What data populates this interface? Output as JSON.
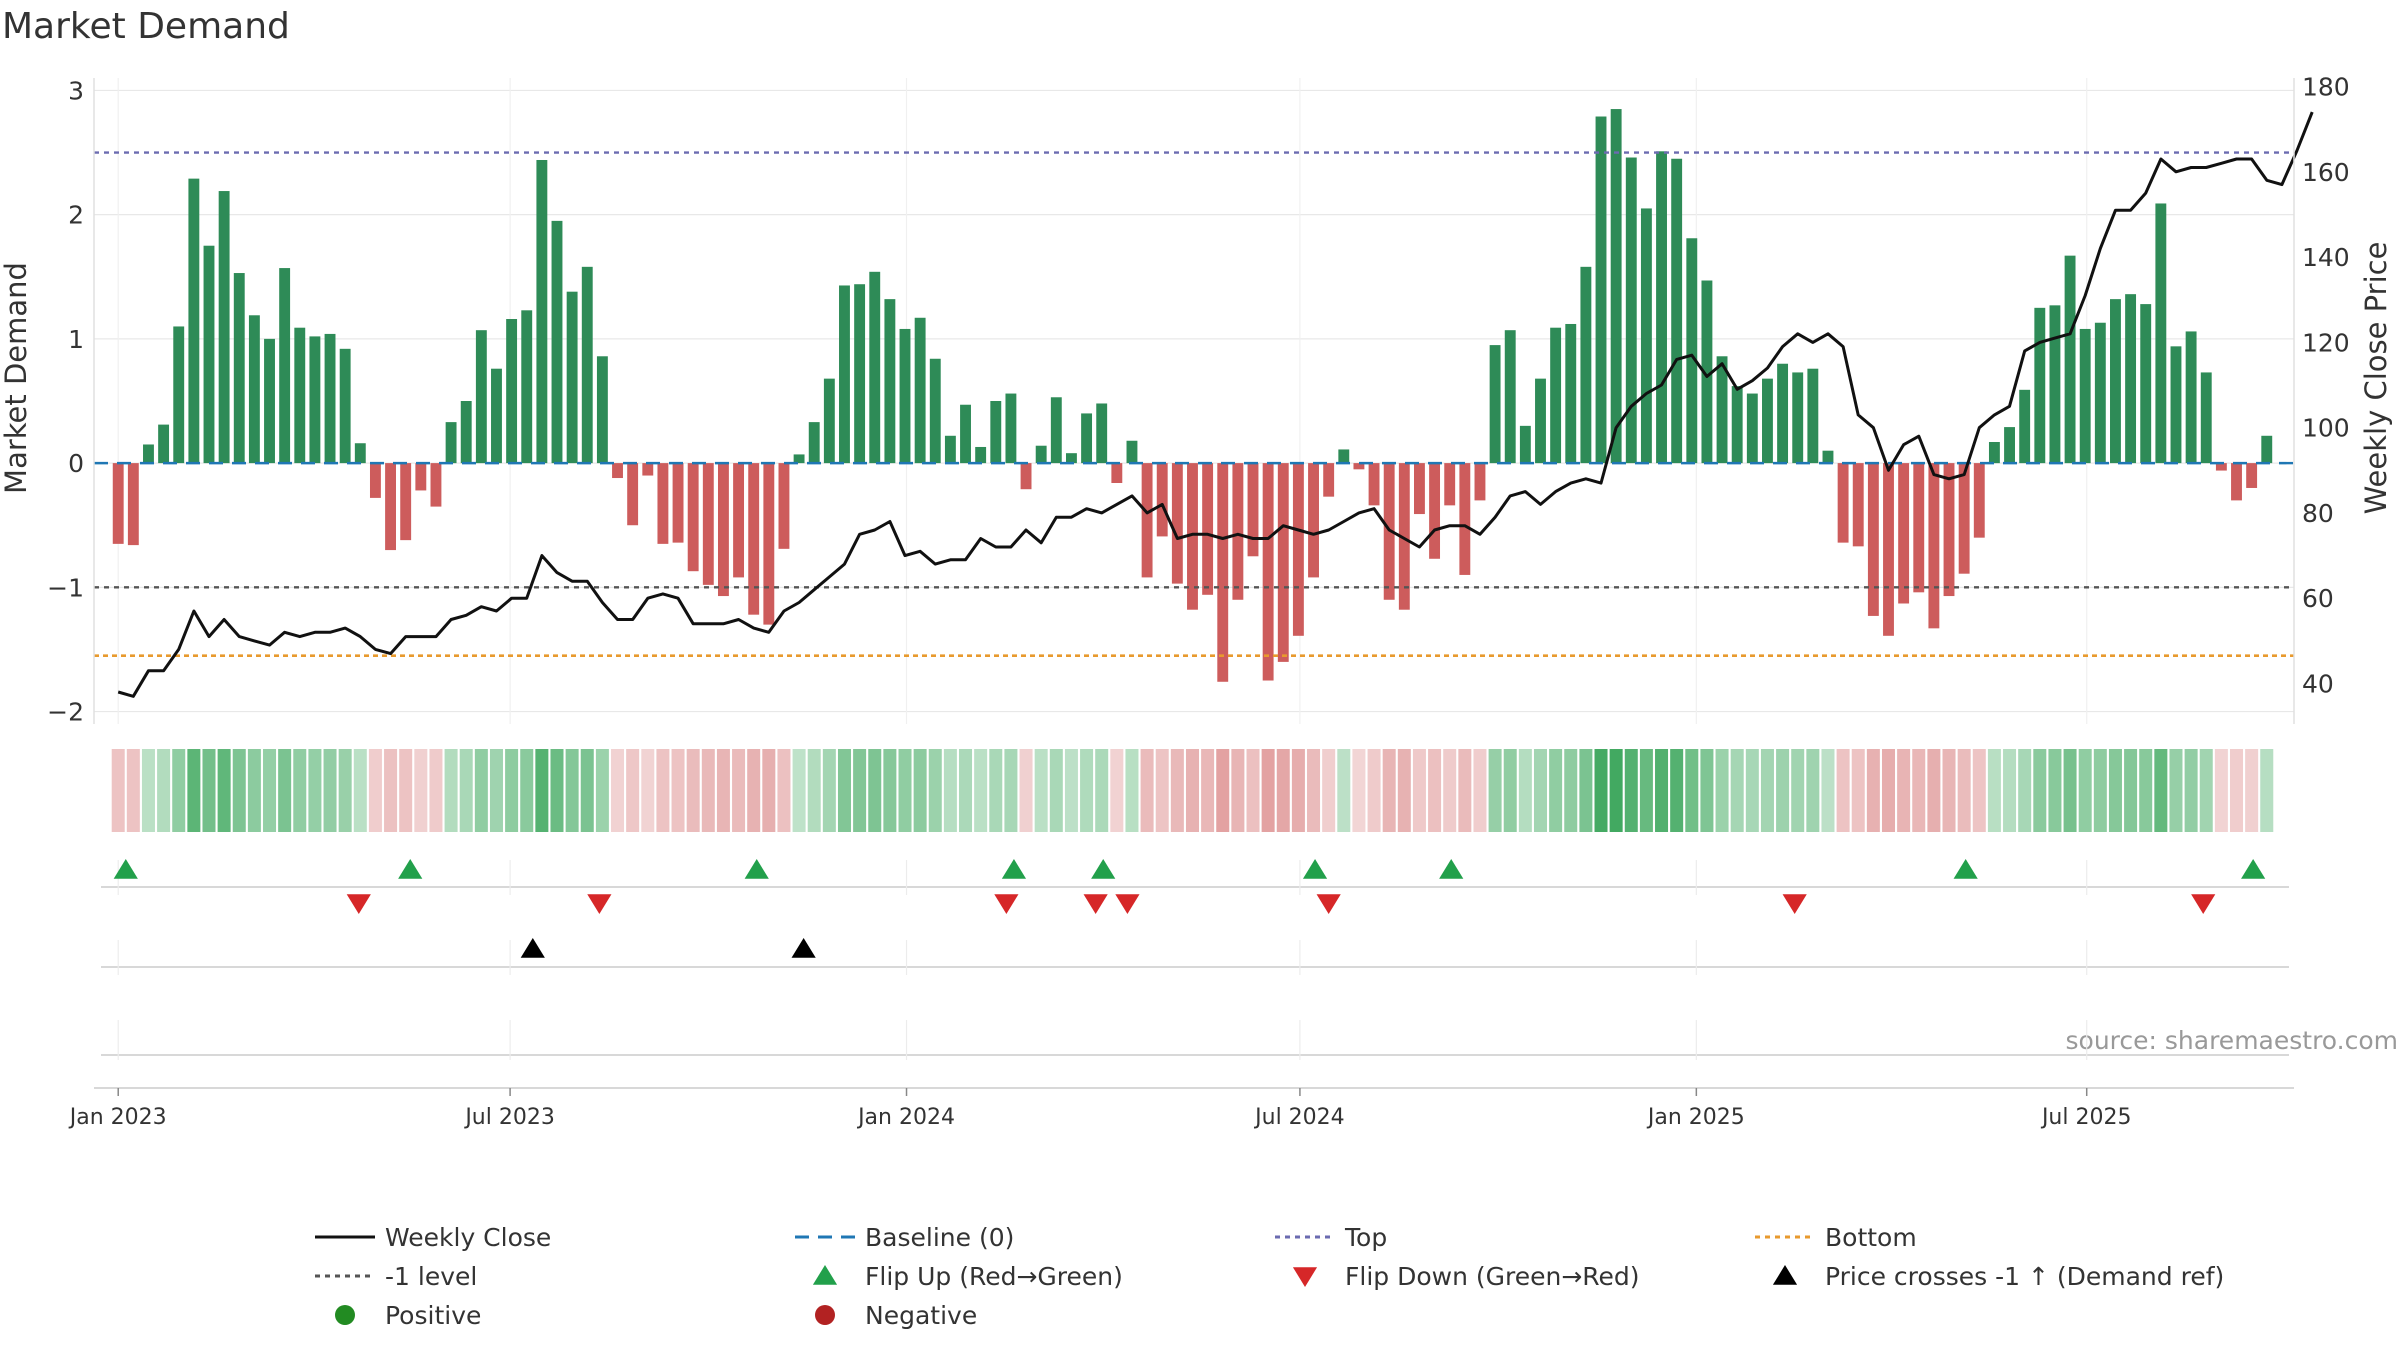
{
  "chart_data": {
    "type": "bar",
    "title": "Market Demand",
    "ylabel_left": "Market Demand",
    "ylabel_right": "Weekly Close Price",
    "source": "source: sharemaestro.com",
    "ylim_left": [
      -2.1,
      3.1
    ],
    "ylim_right": [
      30.5,
      182
    ],
    "yticks_left": [
      {
        "value": 3,
        "label": "3"
      },
      {
        "value": 2,
        "label": "2"
      },
      {
        "value": 1,
        "label": "1"
      },
      {
        "value": 0,
        "label": "0"
      },
      {
        "value": -1,
        "label": "−1"
      },
      {
        "value": -2,
        "label": "−2"
      }
    ],
    "yticks_right": [
      {
        "value": 180,
        "label": "180"
      },
      {
        "value": 160,
        "label": "160"
      },
      {
        "value": 140,
        "label": "140"
      },
      {
        "value": 120,
        "label": "120"
      },
      {
        "value": 100,
        "label": "100"
      },
      {
        "value": 80,
        "label": "80"
      },
      {
        "value": 60,
        "label": "60"
      },
      {
        "value": 40,
        "label": "40"
      }
    ],
    "x_range_weeks": [
      -1.6,
      143.8
    ],
    "xticks": [
      {
        "week": 0,
        "label": "Jan 2023"
      },
      {
        "week": 25.9,
        "label": "Jul 2023"
      },
      {
        "week": 52.1,
        "label": "Jan 2024"
      },
      {
        "week": 78.1,
        "label": "Jul 2024"
      },
      {
        "week": 104.3,
        "label": "Jan 2025"
      },
      {
        "week": 130.1,
        "label": "Jul 2025"
      }
    ],
    "reference_lines": {
      "baseline": 0,
      "top": 2.5,
      "minus_one": -1,
      "bottom": -1.55
    },
    "demand": [
      -0.65,
      -0.66,
      0.15,
      0.31,
      1.1,
      2.29,
      1.75,
      2.19,
      1.53,
      1.19,
      1.0,
      1.57,
      1.09,
      1.02,
      1.04,
      0.92,
      0.16,
      -0.28,
      -0.7,
      -0.62,
      -0.22,
      -0.35,
      0.33,
      0.5,
      1.07,
      0.76,
      1.16,
      1.23,
      2.44,
      1.95,
      1.38,
      1.58,
      0.86,
      -0.12,
      -0.5,
      -0.1,
      -0.65,
      -0.64,
      -0.87,
      -0.98,
      -1.07,
      -0.92,
      -1.22,
      -1.3,
      -0.69,
      0.07,
      0.33,
      0.68,
      1.43,
      1.44,
      1.54,
      1.32,
      1.08,
      1.17,
      0.84,
      0.22,
      0.47,
      0.13,
      0.5,
      0.56,
      -0.21,
      0.14,
      0.53,
      0.08,
      0.4,
      0.48,
      -0.16,
      0.18,
      -0.92,
      -0.59,
      -0.97,
      -1.18,
      -1.06,
      -1.76,
      -1.1,
      -0.75,
      -1.75,
      -1.6,
      -1.39,
      -0.92,
      -0.27,
      0.11,
      -0.05,
      -0.34,
      -1.1,
      -1.18,
      -0.41,
      -0.77,
      -0.34,
      -0.9,
      -0.3,
      0.95,
      1.07,
      0.3,
      0.68,
      1.09,
      1.12,
      1.58,
      2.79,
      2.85,
      2.46,
      2.05,
      2.51,
      2.45,
      1.81,
      1.47,
      0.86,
      0.62,
      0.56,
      0.68,
      0.8,
      0.73,
      0.76,
      0.1,
      -0.64,
      -0.67,
      -1.23,
      -1.39,
      -1.13,
      -1.04,
      -1.33,
      -1.07,
      -0.89,
      -0.6,
      0.17,
      0.29,
      0.59,
      1.25,
      1.27,
      1.67,
      1.08,
      1.13,
      1.32,
      1.36,
      1.28,
      2.09,
      0.94,
      1.06,
      0.73,
      -0.06,
      -0.3,
      -0.2,
      0.22
    ],
    "price": [
      38,
      37,
      43,
      43,
      48,
      57,
      51,
      55,
      51,
      50,
      49,
      52,
      51,
      52,
      52,
      53,
      51,
      48,
      47,
      51,
      51,
      51,
      55,
      56,
      58,
      57,
      60,
      60,
      70,
      66,
      64,
      64,
      59,
      55,
      55,
      60,
      61,
      60,
      54,
      54,
      54,
      55,
      53,
      52,
      57,
      59,
      62,
      65,
      68,
      75,
      76,
      78,
      70,
      71,
      68,
      69,
      69,
      74,
      72,
      72,
      76,
      73,
      79,
      79,
      81,
      80,
      82,
      84,
      80,
      82,
      74,
      75,
      75,
      74,
      75,
      74,
      74,
      77,
      76,
      75,
      76,
      78,
      80,
      81,
      76,
      74,
      72,
      76,
      77,
      77,
      75,
      79,
      84,
      85,
      82,
      85,
      87,
      88,
      87,
      100,
      105,
      108,
      110,
      116,
      117,
      112,
      115,
      109,
      111,
      114,
      119,
      122,
      120,
      122,
      119,
      103,
      100,
      90,
      96,
      98,
      89,
      88,
      89,
      100,
      103,
      105,
      118,
      120,
      121,
      122,
      131,
      142,
      151,
      151,
      155,
      163,
      160,
      161,
      161,
      162,
      163,
      163,
      158,
      157,
      165,
      174
    ],
    "heatmap_strip_description": "per-week colored cell: green shades for positive demand, red shades for negative",
    "markers": {
      "flip_up_weeks": [
        0.5,
        19.3,
        42.2,
        59.2,
        65.1,
        79.1,
        88.1,
        122.1,
        141.1
      ],
      "flip_down_weeks": [
        15.9,
        31.8,
        58.7,
        64.6,
        66.7,
        80.0,
        110.8,
        137.8
      ],
      "price_cross_weeks": [
        27.4,
        45.3
      ]
    },
    "legend": [
      {
        "label": "Weekly Close",
        "symbol": "line-solid",
        "color": "#111111"
      },
      {
        "label": "Baseline (0)",
        "symbol": "line-dash",
        "color": "#1f77b4"
      },
      {
        "label": "Top",
        "symbol": "line-dot",
        "color": "#6b6bb0"
      },
      {
        "label": "Bottom",
        "symbol": "line-dot",
        "color": "#e89a2e"
      },
      {
        "label": "-1 level",
        "symbol": "line-dot",
        "color": "#555555"
      },
      {
        "label": "Flip Up (Red→Green)",
        "symbol": "triangle-up",
        "color": "#22a04b"
      },
      {
        "label": "Flip Down (Green→Red)",
        "symbol": "triangle-down",
        "color": "#d62728"
      },
      {
        "label": "Price crosses -1 ↑ (Demand ref)",
        "symbol": "triangle-up",
        "color": "#000000"
      },
      {
        "label": "Positive",
        "symbol": "circle",
        "color": "#228b22"
      },
      {
        "label": "Negative",
        "symbol": "circle",
        "color": "#b22222"
      }
    ],
    "colors": {
      "positive_bar": "#2e8b57",
      "negative_bar": "#cd5c5c",
      "price_line": "#111111",
      "grid": "#e8e8e8"
    }
  }
}
